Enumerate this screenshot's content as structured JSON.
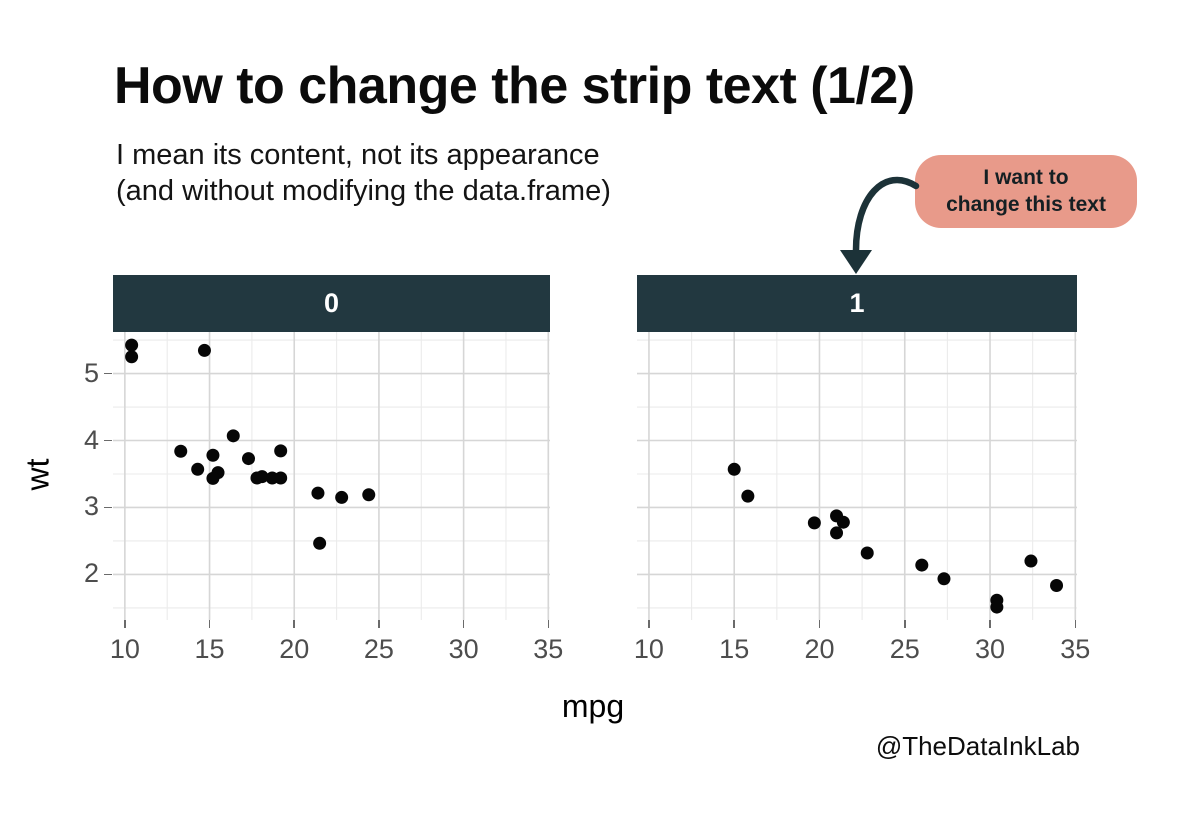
{
  "title": "How to change the strip text (1/2)",
  "subtitle": {
    "line1": "I mean its content, not its appearance",
    "line2": "(and without modifying the data.frame)"
  },
  "callout": {
    "line1": "I want to",
    "line2": "change this text",
    "bubble_color": "#e89a8a",
    "text_color": "#151f23",
    "arrow_color": "#1c3238"
  },
  "watermark": "@TheDataInkLab",
  "chart_data": {
    "type": "scatter",
    "xlabel": "mpg",
    "ylabel": "wt",
    "x_ticks": [
      10,
      15,
      20,
      25,
      30,
      35
    ],
    "y_ticks": [
      2,
      3,
      4,
      5
    ],
    "x_minor_gridlines": [
      12.5,
      17.5,
      22.5,
      27.5,
      32.5
    ],
    "y_minor_gridlines": [
      1.5,
      2.5,
      3.5,
      4.5,
      5.5
    ],
    "xlim": [
      9.3,
      35.1
    ],
    "ylim": [
      1.32,
      5.62
    ],
    "grid": true,
    "legend_position": "none",
    "facets": [
      {
        "label": "0",
        "points": [
          [
            21.4,
            3.215
          ],
          [
            18.7,
            3.44
          ],
          [
            18.1,
            3.46
          ],
          [
            14.3,
            3.57
          ],
          [
            24.4,
            3.19
          ],
          [
            22.8,
            3.15
          ],
          [
            19.2,
            3.44
          ],
          [
            17.8,
            3.44
          ],
          [
            16.4,
            4.07
          ],
          [
            17.3,
            3.73
          ],
          [
            15.2,
            3.78
          ],
          [
            10.4,
            5.25
          ],
          [
            10.4,
            5.424
          ],
          [
            14.7,
            5.345
          ],
          [
            21.5,
            2.465
          ],
          [
            15.5,
            3.52
          ],
          [
            15.2,
            3.435
          ],
          [
            13.3,
            3.84
          ],
          [
            19.2,
            3.845
          ]
        ]
      },
      {
        "label": "1",
        "points": [
          [
            21.0,
            2.62
          ],
          [
            21.0,
            2.875
          ],
          [
            22.8,
            2.32
          ],
          [
            32.4,
            2.2
          ],
          [
            30.4,
            1.615
          ],
          [
            33.9,
            1.835
          ],
          [
            27.3,
            1.935
          ],
          [
            26.0,
            2.14
          ],
          [
            30.4,
            1.513
          ],
          [
            15.8,
            3.17
          ],
          [
            19.7,
            2.77
          ],
          [
            15.0,
            3.57
          ],
          [
            21.4,
            2.78
          ]
        ]
      }
    ],
    "colors": {
      "point": "#060606",
      "strip_bg": "#223840",
      "strip_text": "#ffffff",
      "grid_major": "#d6d6d6",
      "grid_minor": "#ebebeb",
      "tick_label": "#4d4d4d",
      "tick_mark": "#6a6a6a",
      "panel_bg": "#ffffff",
      "axis_title": "#000000"
    }
  }
}
